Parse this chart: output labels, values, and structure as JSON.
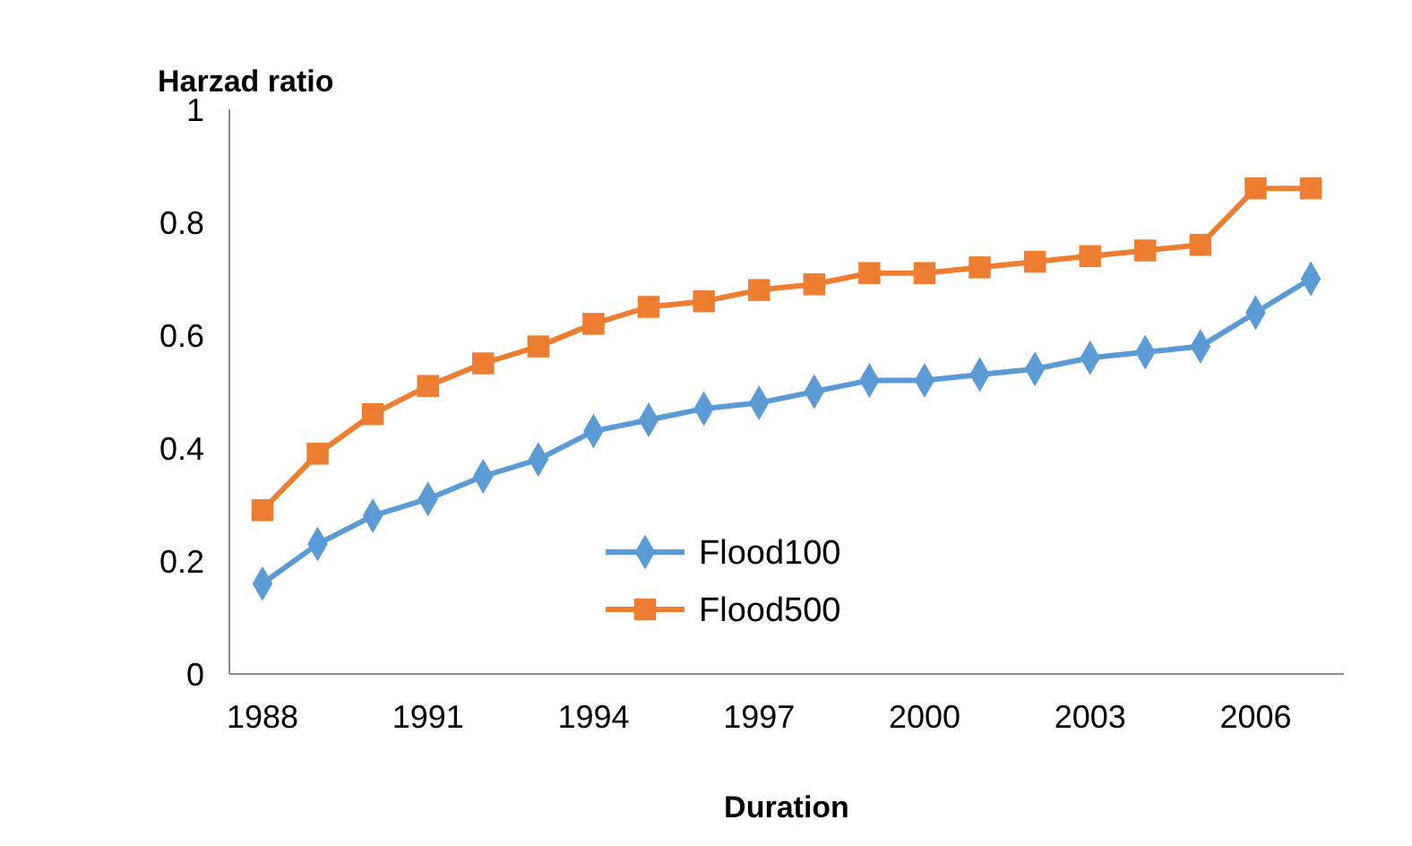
{
  "chart_data": {
    "type": "line",
    "xlabel": "Duration",
    "ylabel": "Harzad ratio",
    "x": [
      1988,
      1989,
      1990,
      1991,
      1992,
      1993,
      1994,
      1995,
      1996,
      1997,
      1998,
      1999,
      2000,
      2001,
      2002,
      2003,
      2004,
      2005,
      2006,
      2007
    ],
    "series": [
      {
        "name": "Flood100",
        "color": "#5b9bd5",
        "marker": "diamond",
        "values": [
          0.16,
          0.23,
          0.28,
          0.31,
          0.35,
          0.38,
          0.43,
          0.45,
          0.47,
          0.48,
          0.5,
          0.52,
          0.52,
          0.53,
          0.54,
          0.56,
          0.57,
          0.58,
          0.64,
          0.7
        ]
      },
      {
        "name": "Flood500",
        "color": "#ed7d31",
        "marker": "square",
        "values": [
          0.29,
          0.39,
          0.46,
          0.51,
          0.55,
          0.58,
          0.62,
          0.65,
          0.66,
          0.68,
          0.69,
          0.71,
          0.71,
          0.72,
          0.73,
          0.74,
          0.75,
          0.76,
          0.86,
          0.86
        ]
      }
    ],
    "xlim": [
      1987.4,
      2007.6
    ],
    "xticks": [
      1988,
      1991,
      1994,
      1997,
      2000,
      2003,
      2006
    ],
    "ylim": [
      0,
      1
    ],
    "yticks": [
      0,
      0.2,
      0.4,
      0.6,
      0.8,
      1
    ],
    "legend": "bottom",
    "grid": false,
    "line_style": "solid"
  }
}
